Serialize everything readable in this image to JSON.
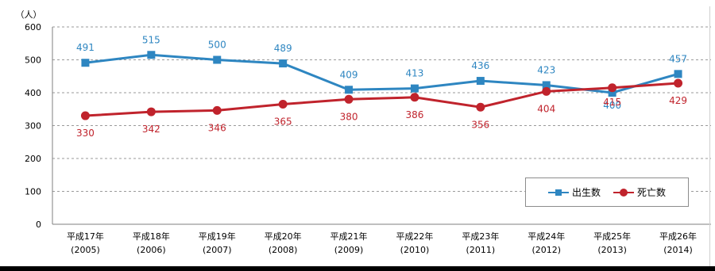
{
  "chart_data": {
    "type": "line",
    "unit_label": "（人）",
    "categories": [
      {
        "era": "平成17年",
        "year": "(2005)"
      },
      {
        "era": "平成18年",
        "year": "(2006)"
      },
      {
        "era": "平成19年",
        "year": "(2007)"
      },
      {
        "era": "平成20年",
        "year": "(2008)"
      },
      {
        "era": "平成21年",
        "year": "(2009)"
      },
      {
        "era": "平成22年",
        "year": "(2010)"
      },
      {
        "era": "平成23年",
        "year": "(2011)"
      },
      {
        "era": "平成24年",
        "year": "(2012)"
      },
      {
        "era": "平成25年",
        "year": "(2013)"
      },
      {
        "era": "平成26年",
        "year": "(2014)"
      }
    ],
    "series": [
      {
        "name": "出生数",
        "values": [
          491,
          515,
          500,
          489,
          409,
          413,
          436,
          423,
          400,
          457
        ],
        "color": "#2e86c1",
        "marker": "square"
      },
      {
        "name": "死亡数",
        "values": [
          330,
          342,
          346,
          365,
          380,
          386,
          356,
          404,
          415,
          429
        ],
        "color": "#c0232c",
        "marker": "circle"
      }
    ],
    "ylim": [
      0,
      600
    ],
    "yticks": [
      "0",
      "100",
      "200",
      "300",
      "400",
      "500",
      "600"
    ],
    "grid": true,
    "legend_position": "bottom-right"
  }
}
